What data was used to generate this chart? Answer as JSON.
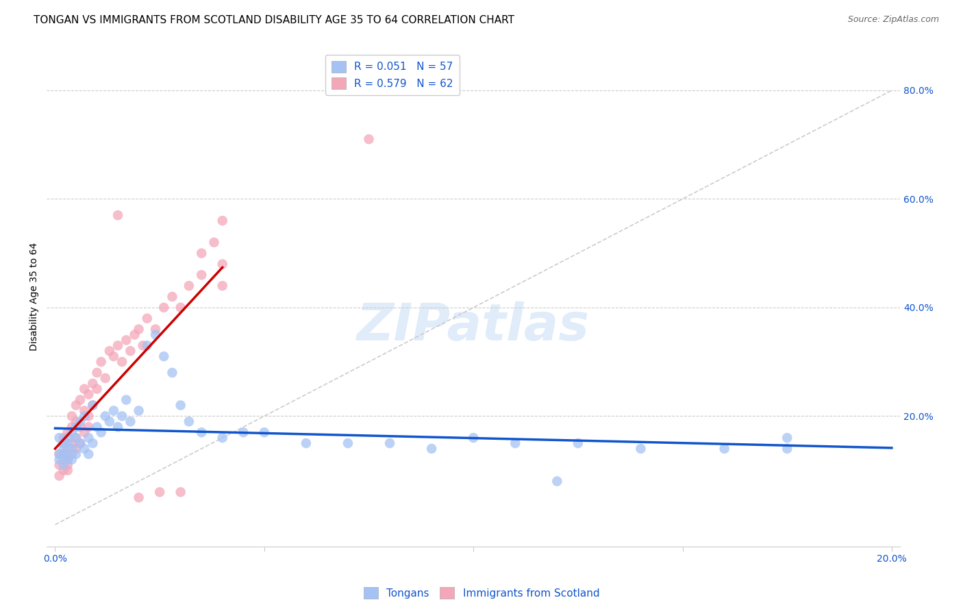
{
  "title": "TONGAN VS IMMIGRANTS FROM SCOTLAND DISABILITY AGE 35 TO 64 CORRELATION CHART",
  "source": "Source: ZipAtlas.com",
  "ylabel": "Disability Age 35 to 64",
  "color_blue": "#a4c2f4",
  "color_pink": "#f4a7b9",
  "color_blue_dark": "#1155cc",
  "color_line_blue": "#1155cc",
  "color_line_pink": "#cc0000",
  "color_diag": "#cccccc",
  "watermark": "ZIPatlas",
  "title_fontsize": 11,
  "source_fontsize": 9,
  "axis_label_fontsize": 10,
  "tick_fontsize": 10,
  "legend_fontsize": 11,
  "blue_x": [
    0.001,
    0.001,
    0.001,
    0.002,
    0.002,
    0.002,
    0.002,
    0.003,
    0.003,
    0.003,
    0.003,
    0.004,
    0.004,
    0.004,
    0.005,
    0.005,
    0.005,
    0.006,
    0.006,
    0.007,
    0.007,
    0.008,
    0.008,
    0.009,
    0.009,
    0.01,
    0.011,
    0.012,
    0.013,
    0.014,
    0.015,
    0.016,
    0.017,
    0.018,
    0.02,
    0.022,
    0.024,
    0.026,
    0.028,
    0.03,
    0.032,
    0.035,
    0.04,
    0.045,
    0.05,
    0.06,
    0.07,
    0.08,
    0.09,
    0.1,
    0.11,
    0.125,
    0.14,
    0.16,
    0.175,
    0.175,
    0.12
  ],
  "blue_y": [
    0.13,
    0.16,
    0.12,
    0.15,
    0.13,
    0.11,
    0.14,
    0.15,
    0.12,
    0.16,
    0.13,
    0.14,
    0.17,
    0.12,
    0.16,
    0.13,
    0.18,
    0.15,
    0.19,
    0.14,
    0.2,
    0.16,
    0.13,
    0.22,
    0.15,
    0.18,
    0.17,
    0.2,
    0.19,
    0.21,
    0.18,
    0.2,
    0.23,
    0.19,
    0.21,
    0.33,
    0.35,
    0.31,
    0.28,
    0.22,
    0.19,
    0.17,
    0.16,
    0.17,
    0.17,
    0.15,
    0.15,
    0.15,
    0.14,
    0.16,
    0.15,
    0.15,
    0.14,
    0.14,
    0.14,
    0.16,
    0.08
  ],
  "pink_x": [
    0.001,
    0.001,
    0.001,
    0.002,
    0.002,
    0.002,
    0.002,
    0.002,
    0.003,
    0.003,
    0.003,
    0.003,
    0.003,
    0.004,
    0.004,
    0.004,
    0.004,
    0.005,
    0.005,
    0.005,
    0.005,
    0.006,
    0.006,
    0.006,
    0.007,
    0.007,
    0.007,
    0.008,
    0.008,
    0.008,
    0.009,
    0.009,
    0.01,
    0.01,
    0.011,
    0.012,
    0.013,
    0.014,
    0.015,
    0.016,
    0.017,
    0.018,
    0.019,
    0.02,
    0.021,
    0.022,
    0.024,
    0.026,
    0.028,
    0.03,
    0.032,
    0.035,
    0.035,
    0.038,
    0.04,
    0.04,
    0.04,
    0.03,
    0.025,
    0.02,
    0.075,
    0.015
  ],
  "pink_y": [
    0.11,
    0.13,
    0.09,
    0.12,
    0.15,
    0.1,
    0.13,
    0.16,
    0.11,
    0.14,
    0.12,
    0.17,
    0.1,
    0.15,
    0.18,
    0.13,
    0.2,
    0.16,
    0.22,
    0.14,
    0.19,
    0.18,
    0.23,
    0.15,
    0.21,
    0.17,
    0.25,
    0.2,
    0.24,
    0.18,
    0.26,
    0.22,
    0.25,
    0.28,
    0.3,
    0.27,
    0.32,
    0.31,
    0.33,
    0.3,
    0.34,
    0.32,
    0.35,
    0.36,
    0.33,
    0.38,
    0.36,
    0.4,
    0.42,
    0.4,
    0.44,
    0.5,
    0.46,
    0.52,
    0.56,
    0.48,
    0.44,
    0.06,
    0.06,
    0.05,
    0.71,
    0.57
  ]
}
